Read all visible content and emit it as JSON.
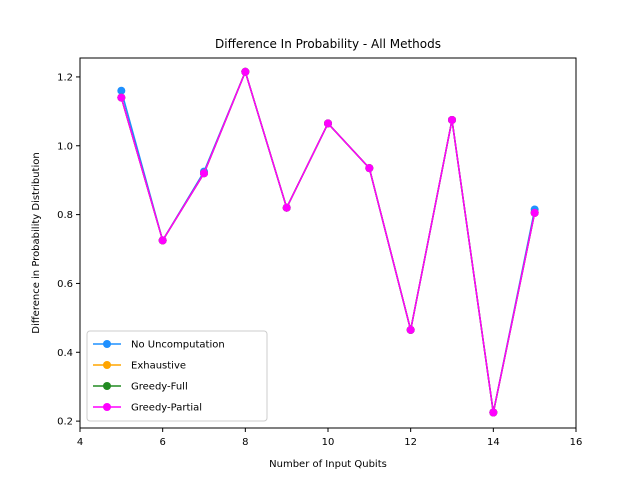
{
  "chart_data": {
    "type": "line",
    "title": "Difference In Probability - All Methods",
    "xlabel": "Number of Input Qubits",
    "ylabel": "Difference in Probability Distribution",
    "xlim": [
      4,
      16
    ],
    "ylim": [
      0.18,
      1.255
    ],
    "xticks": [
      4,
      6,
      8,
      10,
      12,
      14,
      16
    ],
    "yticks": [
      0.2,
      0.4,
      0.6,
      0.8,
      1.0,
      1.2
    ],
    "xtick_labels": [
      "4",
      "6",
      "8",
      "10",
      "12",
      "14",
      "16"
    ],
    "ytick_labels": [
      "0.2",
      "0.4",
      "0.6",
      "0.8",
      "1.0",
      "1.2"
    ],
    "grid": false,
    "legend_position": "lower-left",
    "x": [
      5,
      6,
      7,
      8,
      9,
      10,
      11,
      12,
      13,
      14,
      15
    ],
    "series": [
      {
        "name": "No Uncomputation",
        "color": "#1e90ff",
        "values": [
          1.16,
          0.725,
          0.925,
          1.215,
          0.82,
          1.065,
          0.935,
          0.465,
          1.075,
          0.225,
          0.815
        ]
      },
      {
        "name": "Exhaustive",
        "color": "#ffa500",
        "values": [
          1.14,
          0.725,
          0.92,
          1.215,
          0.82,
          1.065,
          0.935,
          0.465,
          1.075,
          0.225,
          0.805
        ]
      },
      {
        "name": "Greedy-Full",
        "color": "#228b22",
        "values": [
          1.14,
          0.725,
          0.92,
          1.215,
          0.82,
          1.065,
          0.935,
          0.465,
          1.075,
          0.225,
          0.805
        ]
      },
      {
        "name": "Greedy-Partial",
        "color": "#ff00ff",
        "values": [
          1.14,
          0.725,
          0.92,
          1.215,
          0.82,
          1.065,
          0.935,
          0.465,
          1.075,
          0.225,
          0.805
        ]
      }
    ]
  }
}
